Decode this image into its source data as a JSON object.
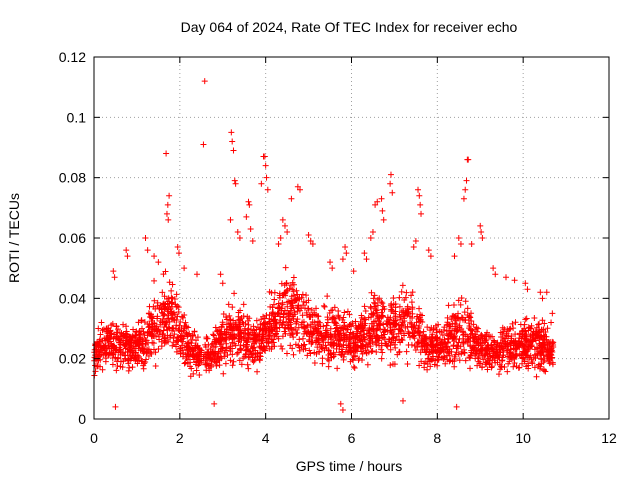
{
  "chart_data": {
    "type": "scatter",
    "title": "Day 064 of 2024, Rate Of TEC Index for receiver echo",
    "xlabel": "GPS time / hours",
    "ylabel": "ROTI / TECUs",
    "xlim": [
      0,
      12
    ],
    "ylim": [
      0,
      0.12
    ],
    "xticks": [
      0,
      2,
      4,
      6,
      8,
      10,
      12
    ],
    "xtick_labels": [
      "0",
      "2",
      "4",
      "6",
      "8",
      "10",
      "12"
    ],
    "yticks": [
      0,
      0.02,
      0.04,
      0.06,
      0.08,
      0.1,
      0.12
    ],
    "ytick_labels": [
      "0",
      "0.02",
      "0.04",
      "0.06",
      "0.08",
      "0.1",
      "0.12"
    ],
    "grid": true,
    "marker": "plus",
    "color": "#ff0000",
    "time_span_hours": [
      0,
      10.7
    ],
    "series": [
      {
        "name": "ROTI",
        "points": [
          [
            2.58,
            0.112
          ],
          [
            1.68,
            0.088
          ],
          [
            2.55,
            0.091
          ],
          [
            3.2,
            0.095
          ],
          [
            3.22,
            0.092
          ],
          [
            3.25,
            0.089
          ],
          [
            3.28,
            0.079
          ],
          [
            3.3,
            0.078
          ],
          [
            3.95,
            0.087
          ],
          [
            3.98,
            0.087
          ],
          [
            4.0,
            0.084
          ],
          [
            4.02,
            0.08
          ],
          [
            3.9,
            0.078
          ],
          [
            4.05,
            0.076
          ],
          [
            8.7,
            0.086
          ],
          [
            8.72,
            0.086
          ],
          [
            8.68,
            0.079
          ],
          [
            8.65,
            0.076
          ],
          [
            8.62,
            0.073
          ],
          [
            6.92,
            0.081
          ],
          [
            6.9,
            0.078
          ],
          [
            6.95,
            0.075
          ],
          [
            7.55,
            0.076
          ],
          [
            7.58,
            0.074
          ],
          [
            7.6,
            0.071
          ],
          [
            7.62,
            0.068
          ],
          [
            4.75,
            0.077
          ],
          [
            4.8,
            0.076
          ],
          [
            4.6,
            0.073
          ],
          [
            6.6,
            0.072
          ],
          [
            6.7,
            0.073
          ],
          [
            6.55,
            0.071
          ],
          [
            6.72,
            0.069
          ],
          [
            6.75,
            0.066
          ],
          [
            6.5,
            0.062
          ],
          [
            6.45,
            0.06
          ],
          [
            1.72,
            0.071
          ],
          [
            1.75,
            0.074
          ],
          [
            1.7,
            0.068
          ],
          [
            1.73,
            0.066
          ],
          [
            3.6,
            0.072
          ],
          [
            3.62,
            0.071
          ],
          [
            3.55,
            0.067
          ],
          [
            3.65,
            0.063
          ],
          [
            3.18,
            0.066
          ],
          [
            3.35,
            0.062
          ],
          [
            3.4,
            0.06
          ],
          [
            3.7,
            0.059
          ],
          [
            4.4,
            0.066
          ],
          [
            4.45,
            0.064
          ],
          [
            4.5,
            0.062
          ],
          [
            4.35,
            0.06
          ],
          [
            4.3,
            0.058
          ],
          [
            5.0,
            0.061
          ],
          [
            5.05,
            0.059
          ],
          [
            5.1,
            0.058
          ],
          [
            5.85,
            0.057
          ],
          [
            5.88,
            0.055
          ],
          [
            5.8,
            0.053
          ],
          [
            6.3,
            0.055
          ],
          [
            6.35,
            0.053
          ],
          [
            8.5,
            0.06
          ],
          [
            8.55,
            0.058
          ],
          [
            8.8,
            0.058
          ],
          [
            8.4,
            0.054
          ],
          [
            9.0,
            0.064
          ],
          [
            9.02,
            0.062
          ],
          [
            9.05,
            0.06
          ],
          [
            7.5,
            0.059
          ],
          [
            7.45,
            0.057
          ],
          [
            7.8,
            0.056
          ],
          [
            7.85,
            0.054
          ],
          [
            1.2,
            0.06
          ],
          [
            1.25,
            0.056
          ],
          [
            1.4,
            0.054
          ],
          [
            1.5,
            0.052
          ],
          [
            1.95,
            0.057
          ],
          [
            1.98,
            0.055
          ],
          [
            2.1,
            0.05
          ],
          [
            0.75,
            0.056
          ],
          [
            0.78,
            0.054
          ],
          [
            0.45,
            0.049
          ],
          [
            0.48,
            0.047
          ],
          [
            2.4,
            0.048
          ],
          [
            2.95,
            0.048
          ],
          [
            3.0,
            0.045
          ],
          [
            5.5,
            0.052
          ],
          [
            5.55,
            0.05
          ],
          [
            6.05,
            0.049
          ],
          [
            9.3,
            0.05
          ],
          [
            9.35,
            0.048
          ],
          [
            9.6,
            0.047
          ],
          [
            9.8,
            0.046
          ],
          [
            10.05,
            0.045
          ],
          [
            10.1,
            0.043
          ],
          [
            10.4,
            0.042
          ],
          [
            10.45,
            0.04
          ],
          [
            10.55,
            0.042
          ],
          [
            0.1,
            0.03
          ],
          [
            0.15,
            0.028
          ],
          [
            0.2,
            0.026
          ],
          [
            10.68,
            0.035
          ],
          [
            10.65,
            0.032
          ],
          [
            5.8,
            0.003
          ],
          [
            5.75,
            0.005
          ],
          [
            2.8,
            0.005
          ],
          [
            0.5,
            0.004
          ],
          [
            7.2,
            0.006
          ],
          [
            8.45,
            0.004
          ]
        ],
        "dense_band": {
          "description": "continuous scatter of points between roughly 0.005 and 0.04 across the full time span",
          "y_range": [
            0.005,
            0.04
          ],
          "typical_median": 0.017
        }
      }
    ]
  }
}
